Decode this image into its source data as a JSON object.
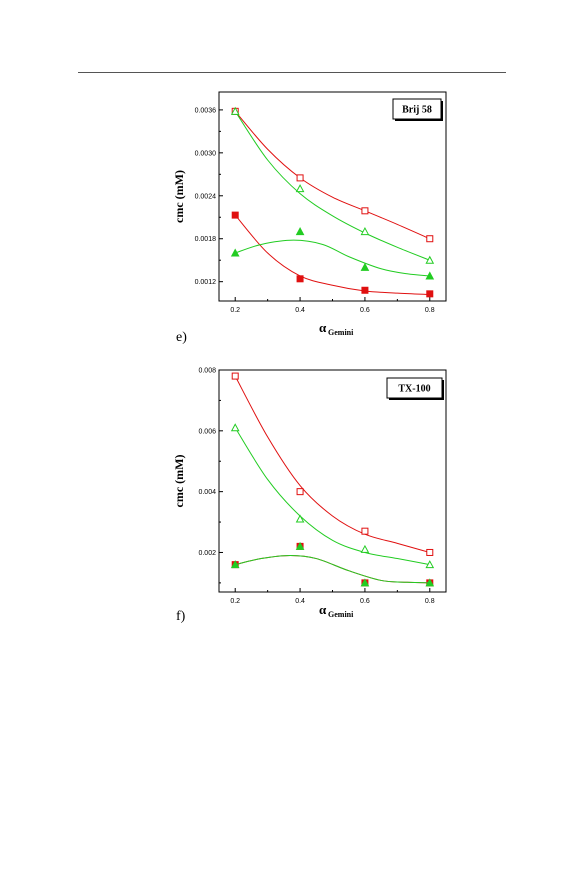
{
  "colors": {
    "red": "#e01010",
    "green": "#22cc22",
    "axis": "#000000"
  },
  "chart_data": [
    {
      "type": "scatter",
      "panel_label": "e)",
      "legend_box": "Brij 58",
      "ylabel": "cmc (mM)",
      "xlabel_main": "α",
      "xlabel_sub": "Gemini",
      "xlim": [
        0.15,
        0.85
      ],
      "ylim": [
        0.00093,
        0.00385
      ],
      "xticks": [
        0.2,
        0.4,
        0.6,
        0.8
      ],
      "xtick_labels": [
        "0.2",
        "0.4",
        "0.6",
        "0.8"
      ],
      "yticks": [
        0.0012,
        0.0018,
        0.0024,
        0.003,
        0.0036
      ],
      "ytick_labels": [
        "0.0012",
        "0.0018",
        "0.0024",
        "0.0030",
        "0.0036"
      ],
      "series": [
        {
          "marker": "open-square",
          "color": "red",
          "x": [
            0.2,
            0.4,
            0.6,
            0.8
          ],
          "y": [
            0.00358,
            0.00265,
            0.00219,
            0.0018
          ],
          "curve": {
            "x": [
              0.2,
              0.3,
              0.4,
              0.5,
              0.6,
              0.7,
              0.8
            ],
            "y": [
              0.00358,
              0.00305,
              0.00265,
              0.00238,
              0.00219,
              0.002,
              0.0018
            ]
          }
        },
        {
          "marker": "open-triangle",
          "color": "green",
          "x": [
            0.2,
            0.4,
            0.6,
            0.8
          ],
          "y": [
            0.00358,
            0.0025,
            0.0019,
            0.0015
          ],
          "curve": {
            "x": [
              0.2,
              0.3,
              0.4,
              0.5,
              0.6,
              0.7,
              0.8
            ],
            "y": [
              0.00358,
              0.0029,
              0.00243,
              0.00212,
              0.00188,
              0.00168,
              0.0015
            ]
          }
        },
        {
          "marker": "filled-square",
          "color": "red",
          "x": [
            0.2,
            0.4,
            0.6,
            0.8
          ],
          "y": [
            0.00213,
            0.00124,
            0.00108,
            0.00103
          ],
          "curve": {
            "x": [
              0.2,
              0.3,
              0.4,
              0.5,
              0.6,
              0.7,
              0.8
            ],
            "y": [
              0.00213,
              0.0016,
              0.00128,
              0.00115,
              0.00107,
              0.00104,
              0.00102
            ]
          }
        },
        {
          "marker": "filled-triangle",
          "color": "green",
          "x": [
            0.2,
            0.4,
            0.6,
            0.8
          ],
          "y": [
            0.0016,
            0.0019,
            0.0014,
            0.00128
          ],
          "curve": {
            "x": [
              0.2,
              0.28,
              0.38,
              0.47,
              0.55,
              0.65,
              0.73,
              0.8
            ],
            "y": [
              0.0016,
              0.00172,
              0.00178,
              0.00172,
              0.00155,
              0.00138,
              0.00131,
              0.00128
            ]
          }
        }
      ]
    },
    {
      "type": "scatter",
      "panel_label": "f)",
      "legend_box": "TX-100",
      "ylabel": "cmc (mM)",
      "xlabel_main": "α",
      "xlabel_sub": "Gemini",
      "xlim": [
        0.15,
        0.85
      ],
      "ylim": [
        0.0007,
        0.008
      ],
      "xticks": [
        0.2,
        0.4,
        0.6,
        0.8
      ],
      "xtick_labels": [
        "0.2",
        "0.4",
        "0.6",
        "0.8"
      ],
      "yticks": [
        0.002,
        0.004,
        0.006,
        0.008
      ],
      "ytick_labels": [
        "0.002",
        "0.004",
        "0.006",
        "0.008"
      ],
      "series": [
        {
          "marker": "open-square",
          "color": "red",
          "x": [
            0.2,
            0.4,
            0.6,
            0.8
          ],
          "y": [
            0.0078,
            0.004,
            0.0027,
            0.002
          ],
          "curve": {
            "x": [
              0.2,
              0.3,
              0.4,
              0.5,
              0.6,
              0.7,
              0.8
            ],
            "y": [
              0.0078,
              0.0058,
              0.0042,
              0.0032,
              0.0026,
              0.0023,
              0.002
            ]
          }
        },
        {
          "marker": "open-triangle",
          "color": "green",
          "x": [
            0.2,
            0.4,
            0.6,
            0.8
          ],
          "y": [
            0.0061,
            0.0031,
            0.0021,
            0.0016
          ],
          "curve": {
            "x": [
              0.2,
              0.3,
              0.4,
              0.5,
              0.6,
              0.7,
              0.8
            ],
            "y": [
              0.0061,
              0.0044,
              0.0032,
              0.0024,
              0.002,
              0.0018,
              0.0016
            ]
          }
        },
        {
          "marker": "filled-square",
          "color": "red",
          "x": [
            0.2,
            0.4,
            0.6,
            0.8
          ],
          "y": [
            0.0016,
            0.0022,
            0.001,
            0.001
          ],
          "curve": {
            "x": [
              0.2,
              0.28,
              0.37,
              0.45,
              0.55,
              0.65,
              0.73,
              0.8
            ],
            "y": [
              0.0016,
              0.0018,
              0.0019,
              0.0018,
              0.0014,
              0.00108,
              0.00102,
              0.001
            ]
          }
        },
        {
          "marker": "filled-triangle",
          "color": "green",
          "x": [
            0.2,
            0.4,
            0.6,
            0.8
          ],
          "y": [
            0.0016,
            0.0022,
            0.001,
            0.001
          ],
          "curve": {
            "x": [
              0.2,
              0.28,
              0.37,
              0.45,
              0.55,
              0.65,
              0.73,
              0.8
            ],
            "y": [
              0.0016,
              0.0018,
              0.0019,
              0.0018,
              0.0014,
              0.00108,
              0.00102,
              0.001
            ]
          }
        }
      ]
    }
  ]
}
